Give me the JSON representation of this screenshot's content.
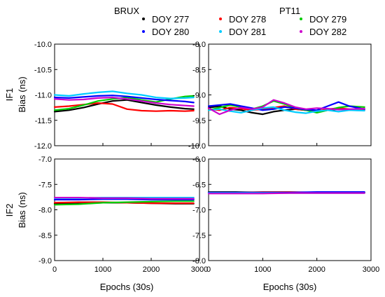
{
  "chart_data": {
    "type": "line",
    "x_range": [
      0,
      3000
    ],
    "x_ticks": [
      0,
      1000,
      2000,
      3000
    ],
    "x_tick_labels": [
      "0",
      "1000",
      "2000",
      "3000"
    ],
    "xlabel": "Epochs (30s)",
    "columns": [
      "BRUX",
      "PT11"
    ],
    "row_labels": [
      "IF1",
      "IF2"
    ],
    "ylabel": "Bias (ns)",
    "legend": {
      "placement": "top-right",
      "entries": [
        {
          "name": "DOY 277",
          "color": "#000000"
        },
        {
          "name": "DOY 278",
          "color": "#ff0000"
        },
        {
          "name": "DOY 279",
          "color": "#00cc00"
        },
        {
          "name": "DOY 280",
          "color": "#0000ff"
        },
        {
          "name": "DOY 281",
          "color": "#00ccff"
        },
        {
          "name": "DOY 282",
          "color": "#cc00cc"
        }
      ]
    },
    "panels": [
      {
        "station": "BRUX",
        "signal": "IF1",
        "ylim": [
          -12.0,
          -10.0
        ],
        "y_tick_labels": [
          "-12.0",
          "-11.5",
          "-11.0",
          "-10.5",
          "-10.0"
        ],
        "series": [
          {
            "name": "DOY 277",
            "x": [
              0,
              300,
              600,
              900,
              1200,
              1500,
              1800,
              2100,
              2400,
              2700,
              2880
            ],
            "y": [
              -11.33,
              -11.3,
              -11.25,
              -11.18,
              -11.12,
              -11.1,
              -11.15,
              -11.2,
              -11.24,
              -11.27,
              -11.28
            ]
          },
          {
            "name": "DOY 278",
            "x": [
              0,
              300,
              600,
              900,
              1200,
              1500,
              1800,
              2100,
              2400,
              2700,
              2880
            ],
            "y": [
              -11.24,
              -11.22,
              -11.19,
              -11.16,
              -11.18,
              -11.28,
              -11.31,
              -11.32,
              -11.31,
              -11.32,
              -11.31
            ]
          },
          {
            "name": "DOY 279",
            "x": [
              0,
              300,
              600,
              900,
              1200,
              1500,
              1800,
              2100,
              2400,
              2700,
              2880
            ],
            "y": [
              -11.3,
              -11.27,
              -11.2,
              -11.12,
              -11.08,
              -11.05,
              -11.1,
              -11.14,
              -11.08,
              -11.03,
              -11.02
            ]
          },
          {
            "name": "DOY 280",
            "x": [
              0,
              300,
              600,
              900,
              1200,
              1500,
              1800,
              2100,
              2400,
              2700,
              2880
            ],
            "y": [
              -11.05,
              -11.06,
              -11.04,
              -11.02,
              -11.01,
              -11.03,
              -11.06,
              -11.09,
              -11.11,
              -11.13,
              -11.15
            ]
          },
          {
            "name": "DOY 281",
            "x": [
              0,
              300,
              600,
              900,
              1200,
              1500,
              1800,
              2100,
              2400,
              2700,
              2880
            ],
            "y": [
              -11.0,
              -11.02,
              -10.98,
              -10.95,
              -10.93,
              -10.97,
              -11.0,
              -11.05,
              -11.07,
              -11.06,
              -11.05
            ]
          },
          {
            "name": "DOY 282",
            "x": [
              0,
              300,
              600,
              900,
              1200,
              1500,
              1800,
              2100,
              2400,
              2700,
              2880
            ],
            "y": [
              -11.08,
              -11.1,
              -11.09,
              -11.06,
              -11.05,
              -11.08,
              -11.12,
              -11.16,
              -11.19,
              -11.21,
              -11.22
            ]
          }
        ]
      },
      {
        "station": "PT11",
        "signal": "IF1",
        "ylim": [
          -10.0,
          -8.0
        ],
        "y_tick_labels": [
          "-10.0",
          "-9.5",
          "-9.0",
          "-8.5",
          "-8.0"
        ],
        "series": [
          {
            "name": "DOY 277",
            "x": [
              0,
              200,
              400,
              600,
              800,
              1000,
              1200,
              1400,
              1600,
              1800,
              2000,
              2200,
              2400,
              2600,
              2880
            ],
            "y": [
              -9.25,
              -9.22,
              -9.28,
              -9.3,
              -9.35,
              -9.38,
              -9.33,
              -9.3,
              -9.28,
              -9.3,
              -9.33,
              -9.3,
              -9.28,
              -9.29,
              -9.28
            ]
          },
          {
            "name": "DOY 278",
            "x": [
              0,
              200,
              400,
              600,
              800,
              1000,
              1200,
              1400,
              1600,
              1800,
              2000,
              2200,
              2400,
              2600,
              2880
            ],
            "y": [
              -9.28,
              -9.3,
              -9.25,
              -9.27,
              -9.3,
              -9.28,
              -9.25,
              -9.22,
              -9.28,
              -9.3,
              -9.32,
              -9.28,
              -9.26,
              -9.28,
              -9.3
            ]
          },
          {
            "name": "DOY 279",
            "x": [
              0,
              200,
              400,
              600,
              800,
              1000,
              1200,
              1400,
              1600,
              1800,
              2000,
              2200,
              2400,
              2600,
              2880
            ],
            "y": [
              -9.3,
              -9.25,
              -9.2,
              -9.24,
              -9.28,
              -9.22,
              -9.12,
              -9.18,
              -9.26,
              -9.3,
              -9.35,
              -9.3,
              -9.25,
              -9.22,
              -9.24
            ]
          },
          {
            "name": "DOY 280",
            "x": [
              0,
              200,
              400,
              600,
              800,
              1000,
              1200,
              1400,
              1600,
              1800,
              2000,
              2200,
              2400,
              2600,
              2880
            ],
            "y": [
              -9.22,
              -9.2,
              -9.18,
              -9.22,
              -9.26,
              -9.3,
              -9.28,
              -9.24,
              -9.26,
              -9.29,
              -9.3,
              -9.22,
              -9.14,
              -9.22,
              -9.28
            ]
          },
          {
            "name": "DOY 281",
            "x": [
              0,
              200,
              400,
              600,
              800,
              1000,
              1200,
              1400,
              1600,
              1800,
              2000,
              2200,
              2400,
              2600,
              2880
            ],
            "y": [
              -9.3,
              -9.28,
              -9.32,
              -9.35,
              -9.3,
              -9.26,
              -9.24,
              -9.3,
              -9.34,
              -9.36,
              -9.32,
              -9.3,
              -9.33,
              -9.3,
              -9.31
            ]
          },
          {
            "name": "DOY 282",
            "x": [
              0,
              200,
              400,
              600,
              800,
              1000,
              1200,
              1400,
              1600,
              1800,
              2000,
              2200,
              2400,
              2600,
              2880
            ],
            "y": [
              -9.26,
              -9.38,
              -9.3,
              -9.25,
              -9.28,
              -9.24,
              -9.1,
              -9.16,
              -9.24,
              -9.28,
              -9.26,
              -9.27,
              -9.29,
              -9.28,
              -9.27
            ]
          }
        ]
      },
      {
        "station": "BRUX",
        "signal": "IF2",
        "ylim": [
          -9.0,
          -7.0
        ],
        "y_tick_labels": [
          "-9.0",
          "-8.5",
          "-8.0",
          "-7.5",
          "-7.0"
        ],
        "series": [
          {
            "name": "DOY 277",
            "x": [
              0,
              500,
              1000,
              1500,
              2000,
              2500,
              2880
            ],
            "y": [
              -7.88,
              -7.87,
              -7.86,
              -7.86,
              -7.87,
              -7.88,
              -7.88
            ]
          },
          {
            "name": "DOY 278",
            "x": [
              0,
              500,
              1000,
              1500,
              2000,
              2500,
              2880
            ],
            "y": [
              -7.86,
              -7.85,
              -7.85,
              -7.86,
              -7.87,
              -7.87,
              -7.87
            ]
          },
          {
            "name": "DOY 279",
            "x": [
              0,
              500,
              1000,
              1500,
              2000,
              2500,
              2880
            ],
            "y": [
              -7.9,
              -7.89,
              -7.86,
              -7.85,
              -7.84,
              -7.83,
              -7.83
            ]
          },
          {
            "name": "DOY 280",
            "x": [
              0,
              500,
              1000,
              1500,
              2000,
              2500,
              2880
            ],
            "y": [
              -7.8,
              -7.8,
              -7.79,
              -7.79,
              -7.8,
              -7.8,
              -7.8
            ]
          },
          {
            "name": "DOY 281",
            "x": [
              0,
              500,
              1000,
              1500,
              2000,
              2500,
              2880
            ],
            "y": [
              -7.77,
              -7.77,
              -7.76,
              -7.76,
              -7.76,
              -7.76,
              -7.76
            ]
          },
          {
            "name": "DOY 282",
            "x": [
              0,
              500,
              1000,
              1500,
              2000,
              2500,
              2880
            ],
            "y": [
              -7.76,
              -7.76,
              -7.77,
              -7.77,
              -7.78,
              -7.78,
              -7.78
            ]
          }
        ]
      },
      {
        "station": "PT11",
        "signal": "IF2",
        "ylim": [
          -8.0,
          -6.0
        ],
        "y_tick_labels": [
          "-8.0",
          "-7.5",
          "-7.0",
          "-6.5",
          "-6.0"
        ],
        "series": [
          {
            "name": "DOY 277",
            "x": [
              0,
              500,
              1000,
              1500,
              2000,
              2500,
              2880
            ],
            "y": [
              -6.65,
              -6.65,
              -6.66,
              -6.66,
              -6.66,
              -6.66,
              -6.66
            ]
          },
          {
            "name": "DOY 278",
            "x": [
              0,
              500,
              1000,
              1500,
              2000,
              2500,
              2880
            ],
            "y": [
              -6.66,
              -6.66,
              -6.65,
              -6.65,
              -6.66,
              -6.66,
              -6.66
            ]
          },
          {
            "name": "DOY 279",
            "x": [
              0,
              500,
              1000,
              1500,
              2000,
              2500,
              2880
            ],
            "y": [
              -6.66,
              -6.66,
              -6.66,
              -6.66,
              -6.66,
              -6.66,
              -6.66
            ]
          },
          {
            "name": "DOY 280",
            "x": [
              0,
              500,
              1000,
              1500,
              2000,
              2500,
              2880
            ],
            "y": [
              -6.66,
              -6.66,
              -6.66,
              -6.66,
              -6.65,
              -6.65,
              -6.65
            ]
          },
          {
            "name": "DOY 281",
            "x": [
              0,
              500,
              1000,
              1500,
              2000,
              2500,
              2880
            ],
            "y": [
              -6.67,
              -6.67,
              -6.67,
              -6.67,
              -6.67,
              -6.67,
              -6.67
            ]
          },
          {
            "name": "DOY 282",
            "x": [
              0,
              500,
              1000,
              1500,
              2000,
              2500,
              2880
            ],
            "y": [
              -6.68,
              -6.68,
              -6.68,
              -6.67,
              -6.67,
              -6.67,
              -6.67
            ]
          }
        ]
      }
    ]
  }
}
